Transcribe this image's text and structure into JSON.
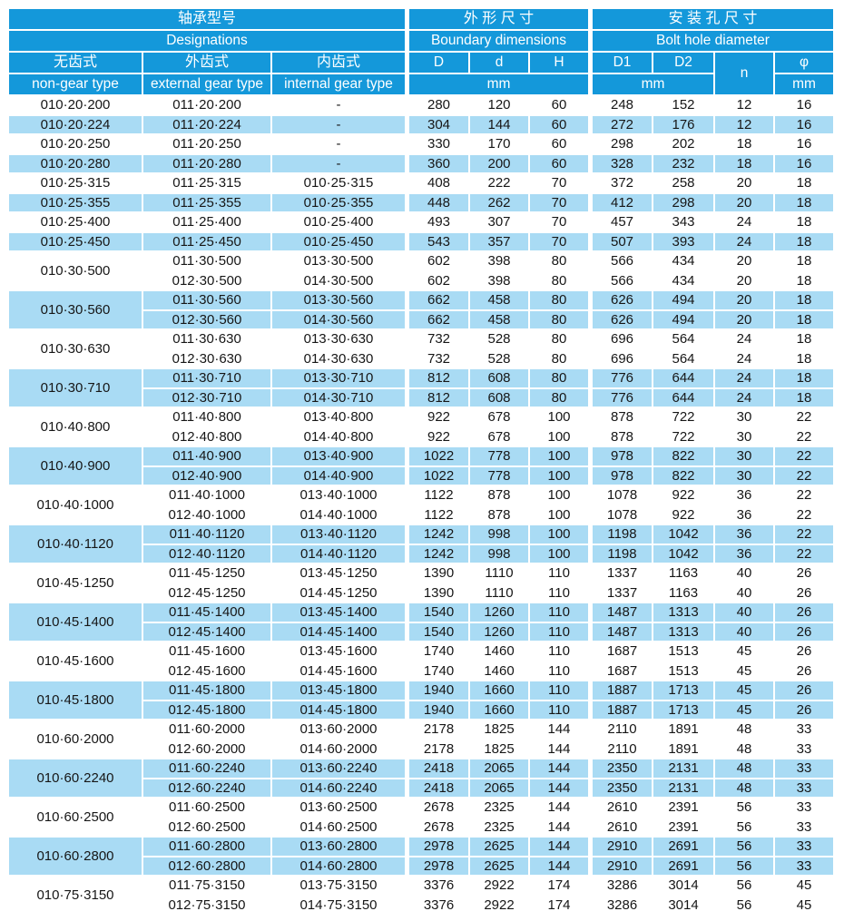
{
  "table": {
    "colors": {
      "header_bg": "#1498DA",
      "row_alt_bg": "#A9DBF4"
    },
    "header": {
      "designations_zh": "轴承型号",
      "designations_en": "Designations",
      "boundary_zh": "外 形 尺 寸",
      "boundary_en": "Boundary dimensions",
      "bolthole_zh": "安 装 孔 尺 寸",
      "bolthole_en": "Bolt hole diameter",
      "non_gear_zh": "无齿式",
      "non_gear_en": "non-gear type",
      "external_gear_zh": "外齿式",
      "external_gear_en": "external gear type",
      "internal_gear_zh": "内齿式",
      "internal_gear_en": "internal gear type",
      "col_D": "D",
      "col_d": "d",
      "col_H": "H",
      "col_D1": "D1",
      "col_D2": "D2",
      "col_n": "n",
      "col_phi": "φ",
      "unit_mm": "mm"
    },
    "groups": [
      {
        "shaded": false,
        "non_gear": "010·20·200",
        "rows": [
          {
            "ext": "011·20·200",
            "int": "-",
            "D": "280",
            "d": "120",
            "H": "60",
            "D1": "248",
            "D2": "152",
            "n": "12",
            "phi": "16"
          }
        ]
      },
      {
        "shaded": true,
        "non_gear": "010·20·224",
        "rows": [
          {
            "ext": "011·20·224",
            "int": "-",
            "D": "304",
            "d": "144",
            "H": "60",
            "D1": "272",
            "D2": "176",
            "n": "12",
            "phi": "16"
          }
        ]
      },
      {
        "shaded": false,
        "non_gear": "010·20·250",
        "rows": [
          {
            "ext": "011·20·250",
            "int": "-",
            "D": "330",
            "d": "170",
            "H": "60",
            "D1": "298",
            "D2": "202",
            "n": "18",
            "phi": "16"
          }
        ]
      },
      {
        "shaded": true,
        "non_gear": "010·20·280",
        "rows": [
          {
            "ext": "011·20·280",
            "int": "-",
            "D": "360",
            "d": "200",
            "H": "60",
            "D1": "328",
            "D2": "232",
            "n": "18",
            "phi": "16"
          }
        ]
      },
      {
        "shaded": false,
        "non_gear": "010·25·315",
        "rows": [
          {
            "ext": "011·25·315",
            "int": "010·25·315",
            "D": "408",
            "d": "222",
            "H": "70",
            "D1": "372",
            "D2": "258",
            "n": "20",
            "phi": "18"
          }
        ]
      },
      {
        "shaded": true,
        "non_gear": "010·25·355",
        "rows": [
          {
            "ext": "011·25·355",
            "int": "010·25·355",
            "D": "448",
            "d": "262",
            "H": "70",
            "D1": "412",
            "D2": "298",
            "n": "20",
            "phi": "18"
          }
        ]
      },
      {
        "shaded": false,
        "non_gear": "010·25·400",
        "rows": [
          {
            "ext": "011·25·400",
            "int": "010·25·400",
            "D": "493",
            "d": "307",
            "H": "70",
            "D1": "457",
            "D2": "343",
            "n": "24",
            "phi": "18"
          }
        ]
      },
      {
        "shaded": true,
        "non_gear": "010·25·450",
        "rows": [
          {
            "ext": "011·25·450",
            "int": "010·25·450",
            "D": "543",
            "d": "357",
            "H": "70",
            "D1": "507",
            "D2": "393",
            "n": "24",
            "phi": "18"
          }
        ]
      },
      {
        "shaded": false,
        "non_gear": "010·30·500",
        "rows": [
          {
            "ext": "011·30·500",
            "int": "013·30·500",
            "D": "602",
            "d": "398",
            "H": "80",
            "D1": "566",
            "D2": "434",
            "n": "20",
            "phi": "18"
          },
          {
            "ext": "012·30·500",
            "int": "014·30·500",
            "D": "602",
            "d": "398",
            "H": "80",
            "D1": "566",
            "D2": "434",
            "n": "20",
            "phi": "18"
          }
        ]
      },
      {
        "shaded": true,
        "non_gear": "010·30·560",
        "rows": [
          {
            "ext": "011·30·560",
            "int": "013·30·560",
            "D": "662",
            "d": "458",
            "H": "80",
            "D1": "626",
            "D2": "494",
            "n": "20",
            "phi": "18"
          },
          {
            "ext": "012·30·560",
            "int": "014·30·560",
            "D": "662",
            "d": "458",
            "H": "80",
            "D1": "626",
            "D2": "494",
            "n": "20",
            "phi": "18"
          }
        ]
      },
      {
        "shaded": false,
        "non_gear": "010·30·630",
        "rows": [
          {
            "ext": "011·30·630",
            "int": "013·30·630",
            "D": "732",
            "d": "528",
            "H": "80",
            "D1": "696",
            "D2": "564",
            "n": "24",
            "phi": "18"
          },
          {
            "ext": "012·30·630",
            "int": "014·30·630",
            "D": "732",
            "d": "528",
            "H": "80",
            "D1": "696",
            "D2": "564",
            "n": "24",
            "phi": "18"
          }
        ]
      },
      {
        "shaded": true,
        "non_gear": "010·30·710",
        "rows": [
          {
            "ext": "011·30·710",
            "int": "013·30·710",
            "D": "812",
            "d": "608",
            "H": "80",
            "D1": "776",
            "D2": "644",
            "n": "24",
            "phi": "18"
          },
          {
            "ext": "012·30·710",
            "int": "014·30·710",
            "D": "812",
            "d": "608",
            "H": "80",
            "D1": "776",
            "D2": "644",
            "n": "24",
            "phi": "18"
          }
        ]
      },
      {
        "shaded": false,
        "non_gear": "010·40·800",
        "rows": [
          {
            "ext": "011·40·800",
            "int": "013·40·800",
            "D": "922",
            "d": "678",
            "H": "100",
            "D1": "878",
            "D2": "722",
            "n": "30",
            "phi": "22"
          },
          {
            "ext": "012·40·800",
            "int": "014·40·800",
            "D": "922",
            "d": "678",
            "H": "100",
            "D1": "878",
            "D2": "722",
            "n": "30",
            "phi": "22"
          }
        ]
      },
      {
        "shaded": true,
        "non_gear": "010·40·900",
        "rows": [
          {
            "ext": "011·40·900",
            "int": "013·40·900",
            "D": "1022",
            "d": "778",
            "H": "100",
            "D1": "978",
            "D2": "822",
            "n": "30",
            "phi": "22"
          },
          {
            "ext": "012·40·900",
            "int": "014·40·900",
            "D": "1022",
            "d": "778",
            "H": "100",
            "D1": "978",
            "D2": "822",
            "n": "30",
            "phi": "22"
          }
        ]
      },
      {
        "shaded": false,
        "non_gear": "010·40·1000",
        "rows": [
          {
            "ext": "011·40·1000",
            "int": "013·40·1000",
            "D": "1122",
            "d": "878",
            "H": "100",
            "D1": "1078",
            "D2": "922",
            "n": "36",
            "phi": "22"
          },
          {
            "ext": "012·40·1000",
            "int": "014·40·1000",
            "D": "1122",
            "d": "878",
            "H": "100",
            "D1": "1078",
            "D2": "922",
            "n": "36",
            "phi": "22"
          }
        ]
      },
      {
        "shaded": true,
        "non_gear": "010·40·1120",
        "rows": [
          {
            "ext": "011·40·1120",
            "int": "013·40·1120",
            "D": "1242",
            "d": "998",
            "H": "100",
            "D1": "1198",
            "D2": "1042",
            "n": "36",
            "phi": "22"
          },
          {
            "ext": "012·40·1120",
            "int": "014·40·1120",
            "D": "1242",
            "d": "998",
            "H": "100",
            "D1": "1198",
            "D2": "1042",
            "n": "36",
            "phi": "22"
          }
        ]
      },
      {
        "shaded": false,
        "non_gear": "010·45·1250",
        "rows": [
          {
            "ext": "011·45·1250",
            "int": "013·45·1250",
            "D": "1390",
            "d": "1110",
            "H": "110",
            "D1": "1337",
            "D2": "1163",
            "n": "40",
            "phi": "26"
          },
          {
            "ext": "012·45·1250",
            "int": "014·45·1250",
            "D": "1390",
            "d": "1110",
            "H": "110",
            "D1": "1337",
            "D2": "1163",
            "n": "40",
            "phi": "26"
          }
        ]
      },
      {
        "shaded": true,
        "non_gear": "010·45·1400",
        "rows": [
          {
            "ext": "011·45·1400",
            "int": "013·45·1400",
            "D": "1540",
            "d": "1260",
            "H": "110",
            "D1": "1487",
            "D2": "1313",
            "n": "40",
            "phi": "26"
          },
          {
            "ext": "012·45·1400",
            "int": "014·45·1400",
            "D": "1540",
            "d": "1260",
            "H": "110",
            "D1": "1487",
            "D2": "1313",
            "n": "40",
            "phi": "26"
          }
        ]
      },
      {
        "shaded": false,
        "non_gear": "010·45·1600",
        "rows": [
          {
            "ext": "011·45·1600",
            "int": "013·45·1600",
            "D": "1740",
            "d": "1460",
            "H": "110",
            "D1": "1687",
            "D2": "1513",
            "n": "45",
            "phi": "26"
          },
          {
            "ext": "012·45·1600",
            "int": "014·45·1600",
            "D": "1740",
            "d": "1460",
            "H": "110",
            "D1": "1687",
            "D2": "1513",
            "n": "45",
            "phi": "26"
          }
        ]
      },
      {
        "shaded": true,
        "non_gear": "010·45·1800",
        "rows": [
          {
            "ext": "011·45·1800",
            "int": "013·45·1800",
            "D": "1940",
            "d": "1660",
            "H": "110",
            "D1": "1887",
            "D2": "1713",
            "n": "45",
            "phi": "26"
          },
          {
            "ext": "012·45·1800",
            "int": "014·45·1800",
            "D": "1940",
            "d": "1660",
            "H": "110",
            "D1": "1887",
            "D2": "1713",
            "n": "45",
            "phi": "26"
          }
        ]
      },
      {
        "shaded": false,
        "non_gear": "010·60·2000",
        "rows": [
          {
            "ext": "011·60·2000",
            "int": "013·60·2000",
            "D": "2178",
            "d": "1825",
            "H": "144",
            "D1": "2110",
            "D2": "1891",
            "n": "48",
            "phi": "33"
          },
          {
            "ext": "012·60·2000",
            "int": "014·60·2000",
            "D": "2178",
            "d": "1825",
            "H": "144",
            "D1": "2110",
            "D2": "1891",
            "n": "48",
            "phi": "33"
          }
        ]
      },
      {
        "shaded": true,
        "non_gear": "010·60·2240",
        "rows": [
          {
            "ext": "011·60·2240",
            "int": "013·60·2240",
            "D": "2418",
            "d": "2065",
            "H": "144",
            "D1": "2350",
            "D2": "2131",
            "n": "48",
            "phi": "33"
          },
          {
            "ext": "012·60·2240",
            "int": "014·60·2240",
            "D": "2418",
            "d": "2065",
            "H": "144",
            "D1": "2350",
            "D2": "2131",
            "n": "48",
            "phi": "33"
          }
        ]
      },
      {
        "shaded": false,
        "non_gear": "010·60·2500",
        "rows": [
          {
            "ext": "011·60·2500",
            "int": "013·60·2500",
            "D": "2678",
            "d": "2325",
            "H": "144",
            "D1": "2610",
            "D2": "2391",
            "n": "56",
            "phi": "33"
          },
          {
            "ext": "012·60·2500",
            "int": "014·60·2500",
            "D": "2678",
            "d": "2325",
            "H": "144",
            "D1": "2610",
            "D2": "2391",
            "n": "56",
            "phi": "33"
          }
        ]
      },
      {
        "shaded": true,
        "non_gear": "010·60·2800",
        "rows": [
          {
            "ext": "011·60·2800",
            "int": "013·60·2800",
            "D": "2978",
            "d": "2625",
            "H": "144",
            "D1": "2910",
            "D2": "2691",
            "n": "56",
            "phi": "33"
          },
          {
            "ext": "012·60·2800",
            "int": "014·60·2800",
            "D": "2978",
            "d": "2625",
            "H": "144",
            "D1": "2910",
            "D2": "2691",
            "n": "56",
            "phi": "33"
          }
        ]
      },
      {
        "shaded": false,
        "non_gear": "010·75·3150",
        "rows": [
          {
            "ext": "011·75·3150",
            "int": "013·75·3150",
            "D": "3376",
            "d": "2922",
            "H": "174",
            "D1": "3286",
            "D2": "3014",
            "n": "56",
            "phi": "45"
          },
          {
            "ext": "012·75·3150",
            "int": "014·75·3150",
            "D": "3376",
            "d": "2922",
            "H": "174",
            "D1": "3286",
            "D2": "3014",
            "n": "56",
            "phi": "45"
          }
        ]
      }
    ]
  }
}
